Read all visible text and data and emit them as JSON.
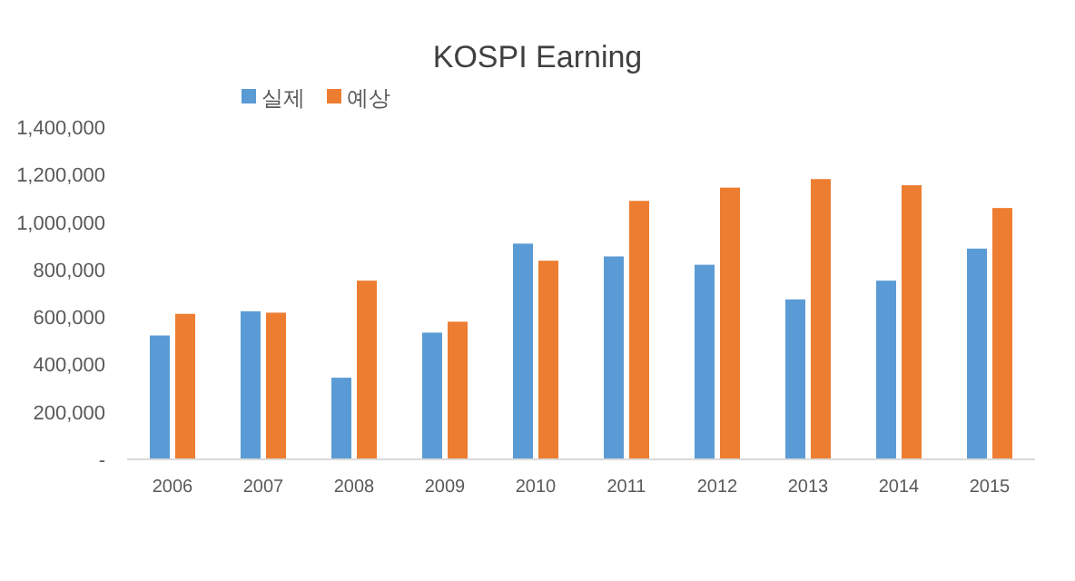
{
  "chart_data": {
    "type": "bar",
    "title": "KOSPI Earning",
    "categories": [
      "2006",
      "2007",
      "2008",
      "2009",
      "2010",
      "2011",
      "2012",
      "2013",
      "2014",
      "2015"
    ],
    "series": [
      {
        "name": "실제",
        "color": "#5b9bd5",
        "values": [
          522000,
          624000,
          344000,
          534000,
          909000,
          855000,
          820000,
          674000,
          753000,
          888000
        ]
      },
      {
        "name": "예상",
        "color": "#ed7d31",
        "values": [
          613000,
          618000,
          753000,
          580000,
          837000,
          1089000,
          1145000,
          1181000,
          1155000,
          1059000
        ]
      }
    ],
    "ylim": [
      0,
      1400000
    ],
    "yticks": [
      {
        "value": 0,
        "label": "-"
      },
      {
        "value": 200000,
        "label": "200,000"
      },
      {
        "value": 400000,
        "label": "400,000"
      },
      {
        "value": 600000,
        "label": "600,000"
      },
      {
        "value": 800000,
        "label": "800,000"
      },
      {
        "value": 1000000,
        "label": "1,000,000"
      },
      {
        "value": 1200000,
        "label": "1,200,000"
      },
      {
        "value": 1400000,
        "label": "1,400,000"
      }
    ],
    "grid": false,
    "legend": "top left"
  }
}
